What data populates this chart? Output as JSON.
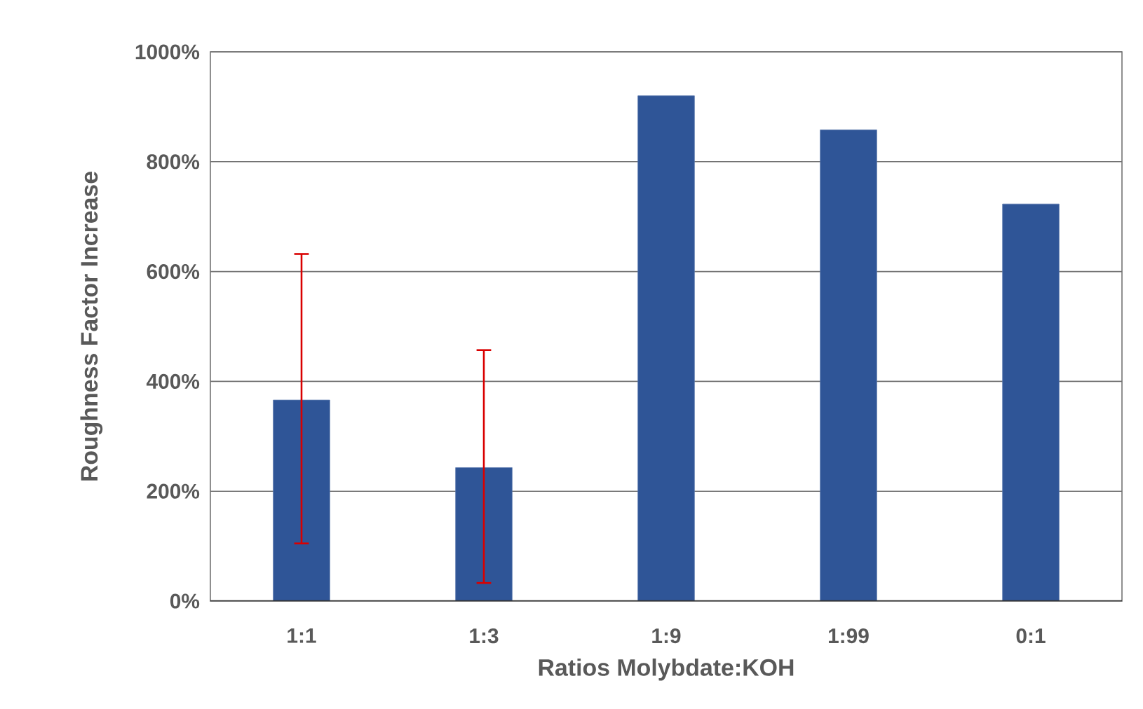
{
  "chart_data": {
    "type": "bar",
    "xlabel": "Ratios Molybdate:KOH",
    "ylabel": "Roughness Factor Increase",
    "categories": [
      "1:1",
      "1:3",
      "1:9",
      "1:99",
      "0:1"
    ],
    "values": [
      366,
      243,
      920,
      858,
      723
    ],
    "errors": [
      [
        105,
        632
      ],
      [
        33,
        457
      ],
      null,
      null,
      null
    ],
    "color": "#2f5597",
    "ylim": [
      0,
      1000
    ],
    "yticks": [
      {
        "value": 0,
        "label": "0%"
      },
      {
        "value": 200,
        "label": "200%"
      },
      {
        "value": 400,
        "label": "400%"
      },
      {
        "value": 600,
        "label": "600%"
      },
      {
        "value": 800,
        "label": "800%"
      },
      {
        "value": 1000,
        "label": "1000%"
      }
    ],
    "grid": "y"
  }
}
